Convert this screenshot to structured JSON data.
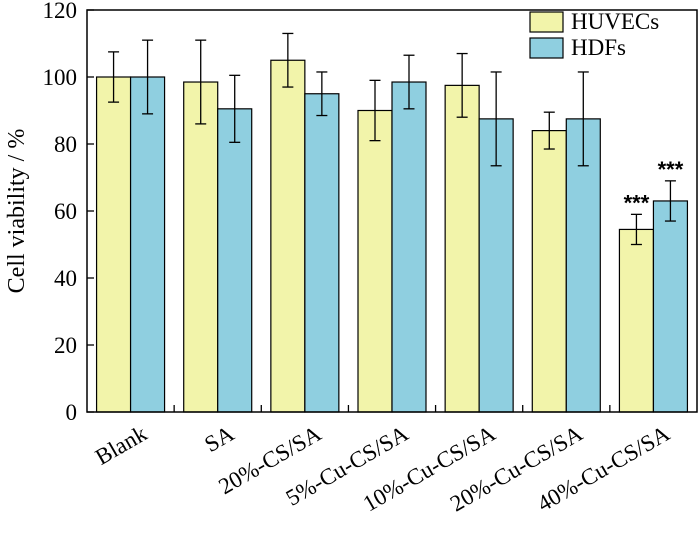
{
  "chart_data": {
    "type": "bar",
    "title": "",
    "xlabel": "",
    "ylabel": "Cell viability / %",
    "ylim": [
      0,
      120
    ],
    "yticks": [
      0,
      20,
      40,
      60,
      80,
      100,
      120
    ],
    "categories": [
      "Blank",
      "SA",
      "20%-CS/SA",
      "5%-Cu-CS/SA",
      "10%-Cu-CS/SA",
      "20%-Cu-CS/SA",
      "40%-Cu-CS/SA"
    ],
    "series": [
      {
        "name": "HUVECs",
        "color": "#f2f4aa",
        "values": [
          100,
          98.5,
          105,
          90,
          97.5,
          84,
          54.5
        ],
        "errors": [
          7.5,
          12.5,
          8,
          9,
          9.5,
          5.5,
          4.5
        ]
      },
      {
        "name": "HDFs",
        "color": "#8fcfe0",
        "values": [
          100,
          90.5,
          95,
          98.5,
          87.5,
          87.5,
          63
        ],
        "errors": [
          11,
          10,
          6.5,
          8,
          14,
          14,
          6
        ]
      }
    ],
    "annotations": [
      {
        "category": "40%-Cu-CS/SA",
        "series": "HUVECs",
        "text": "***"
      },
      {
        "category": "40%-Cu-CS/SA",
        "series": "HDFs",
        "text": "***"
      }
    ],
    "legend": {
      "position": "top-right",
      "entries": [
        "HUVECs",
        "HDFs"
      ]
    },
    "grid": false
  }
}
